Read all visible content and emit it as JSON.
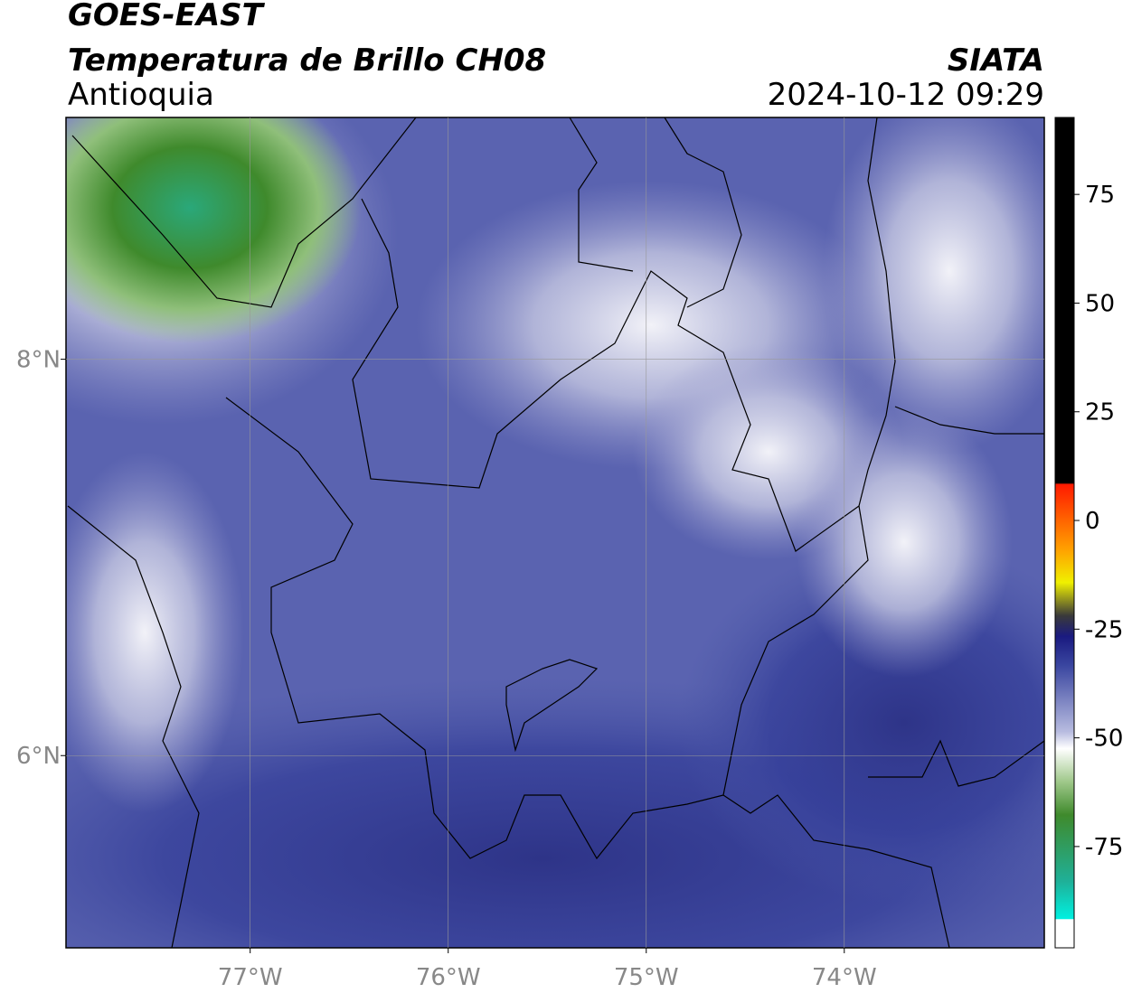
{
  "header": {
    "title1": "GOES-EAST",
    "title2": "Temperatura de Brillo CH08",
    "region": "Antioquia",
    "source": "SIATA",
    "datetime": "2024-10-12 09:29"
  },
  "map": {
    "xlim": [
      -77.93,
      -72.99
    ],
    "ylim": [
      5.03,
      9.22
    ],
    "xticks": [
      {
        "value": -77,
        "label": "77°W"
      },
      {
        "value": -76,
        "label": "76°W"
      },
      {
        "value": -75,
        "label": "75°W"
      },
      {
        "value": -74,
        "label": "74°W"
      }
    ],
    "yticks": [
      {
        "value": 6,
        "label": "6°N"
      },
      {
        "value": 8,
        "label": "8°N"
      }
    ],
    "grid": true
  },
  "colorbar": {
    "lim": [
      -98.3,
      92.7
    ],
    "ticks": [
      75,
      50,
      25,
      0,
      -25,
      -50,
      -75
    ]
  }
}
